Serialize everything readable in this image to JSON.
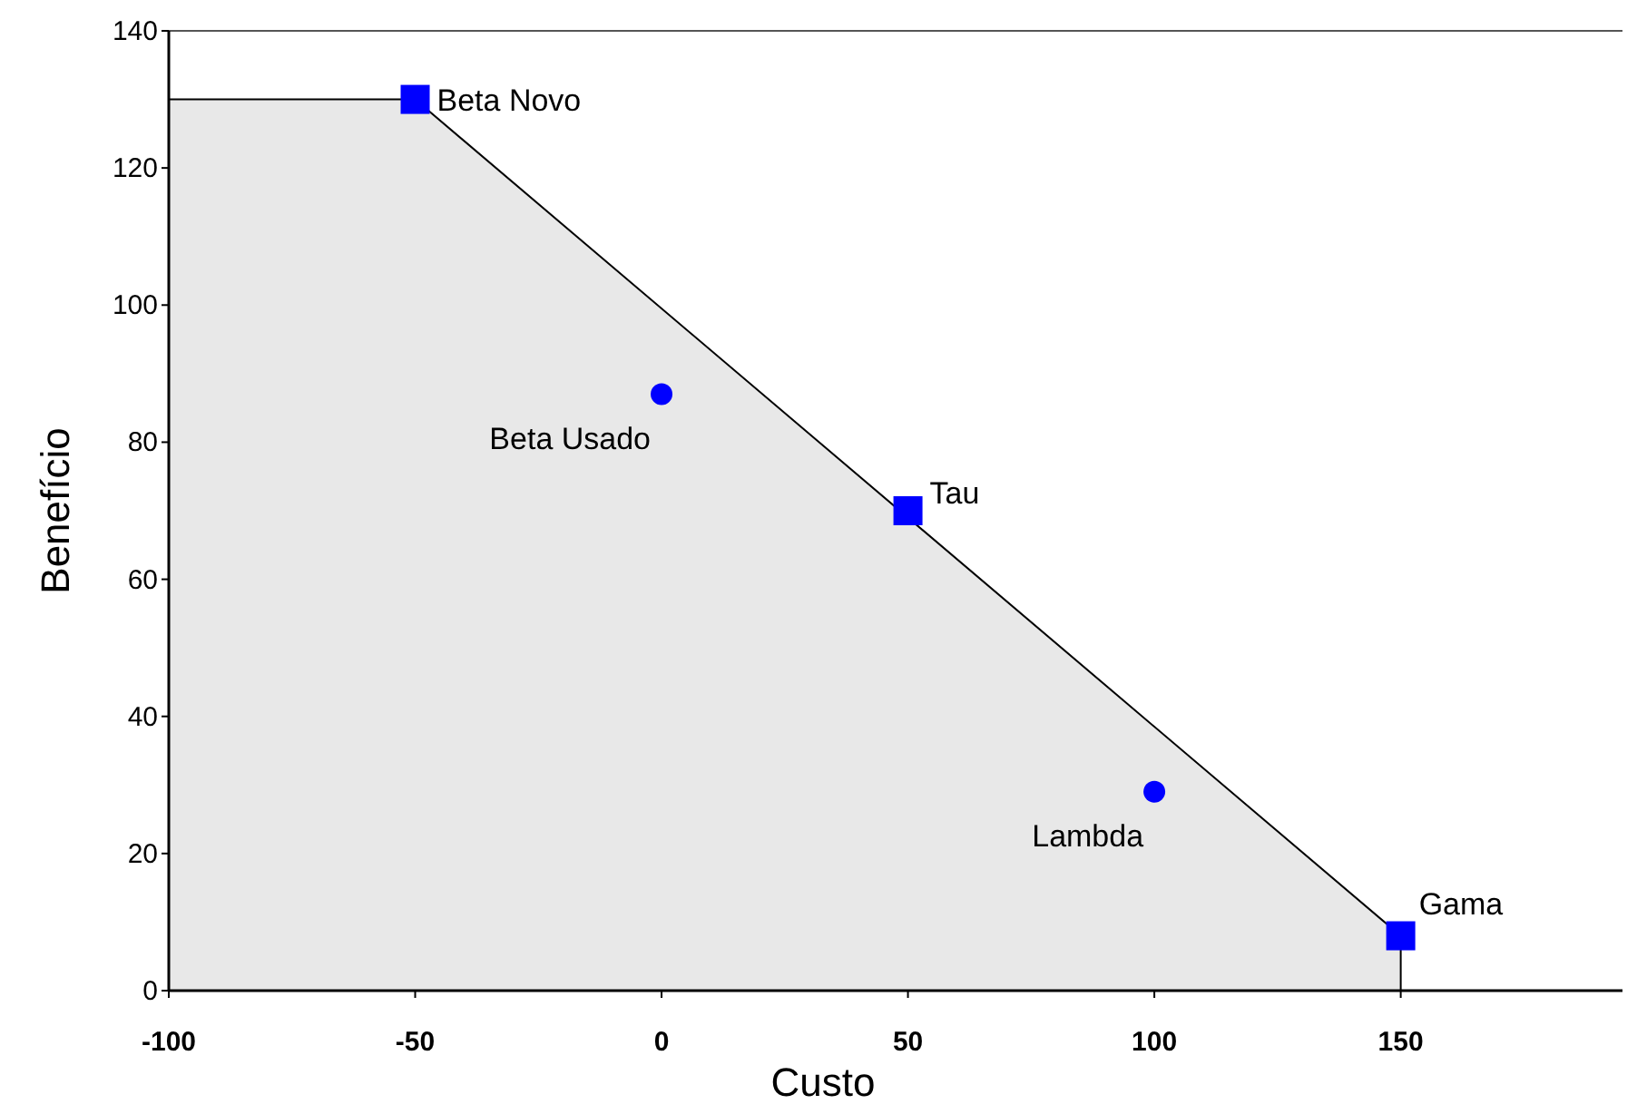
{
  "chart_data": {
    "type": "scatter",
    "xlabel": "Custo",
    "ylabel": "Benefício",
    "xlim": [
      -100,
      195
    ],
    "xticks": [
      -100,
      -50,
      0,
      50,
      100,
      150
    ],
    "ylim": [
      0,
      140
    ],
    "yticks": [
      0,
      20,
      40,
      60,
      80,
      100,
      120,
      140
    ],
    "grid": false,
    "series": [
      {
        "type": "area",
        "color": "#e8e8e8",
        "x": [
          -100,
          -50,
          150
        ],
        "values": [
          130,
          130,
          8
        ]
      },
      {
        "name": "Beta Novo",
        "marker": "square",
        "color": "#0000ff",
        "x": [
          -50
        ],
        "values": [
          130
        ]
      },
      {
        "name": "Beta Usado",
        "marker": "circle",
        "color": "#0000ff",
        "x": [
          0
        ],
        "values": [
          87
        ]
      },
      {
        "name": "Tau",
        "marker": "square",
        "color": "#0000ff",
        "x": [
          50
        ],
        "values": [
          70
        ]
      },
      {
        "name": "Lambda",
        "marker": "circle",
        "color": "#0000ff",
        "x": [
          100
        ],
        "values": [
          29
        ]
      },
      {
        "name": "Gama",
        "marker": "square",
        "color": "#0000ff",
        "x": [
          150
        ],
        "values": [
          8
        ]
      }
    ]
  }
}
